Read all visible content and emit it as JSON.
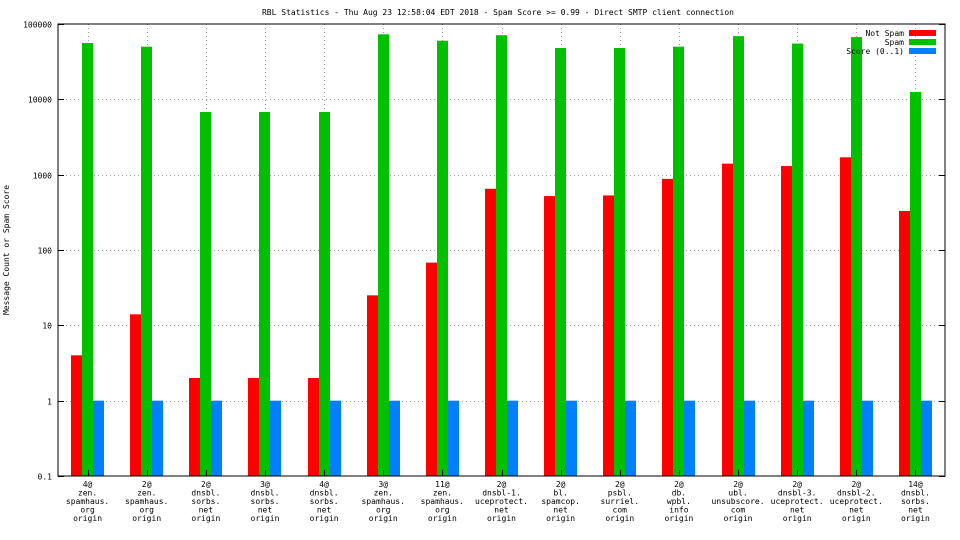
{
  "chart_data": {
    "type": "bar",
    "title": "RBL Statistics - Thu Aug 23 12:58:04 EDT 2018 - Spam Score >= 0.99 - Direct SMTP client connection",
    "xlabel": "",
    "ylabel": "Message Count or Spam Score",
    "yscale": "log",
    "ylim": [
      0.1,
      100000
    ],
    "yticks": [
      0.1,
      1,
      10,
      100,
      1000,
      10000,
      100000
    ],
    "ytick_labels": [
      "0.1",
      "1",
      "10",
      "100",
      "1000",
      "10000",
      "100000"
    ],
    "grid": true,
    "legend_position": "top-right",
    "categories": [
      [
        "4@",
        "zen.",
        "spamhaus.",
        "org",
        "origin"
      ],
      [
        "2@",
        "zen.",
        "spamhaus.",
        "org",
        "origin"
      ],
      [
        "2@",
        "dnsbl.",
        "sorbs.",
        "net",
        "origin"
      ],
      [
        "3@",
        "dnsbl.",
        "sorbs.",
        "net",
        "origin"
      ],
      [
        "4@",
        "dnsbl.",
        "sorbs.",
        "net",
        "origin"
      ],
      [
        "3@",
        "zen.",
        "spamhaus.",
        "org",
        "origin"
      ],
      [
        "11@",
        "zen.",
        "spamhaus.",
        "org",
        "origin"
      ],
      [
        "2@",
        "dnsbl-1.",
        "uceprotect.",
        "net",
        "origin"
      ],
      [
        "2@",
        "bl.",
        "spamcop.",
        "net",
        "origin"
      ],
      [
        "2@",
        "psbl.",
        "surriel.",
        "com",
        "origin"
      ],
      [
        "2@",
        "db.",
        "wpbl.",
        "info",
        "origin"
      ],
      [
        "2@",
        "ubl.",
        "unsubscore.",
        "com",
        "origin"
      ],
      [
        "2@",
        "dnsbl-3.",
        "uceprotect.",
        "net",
        "origin"
      ],
      [
        "2@",
        "dnsbl-2.",
        "uceprotect.",
        "net",
        "origin"
      ],
      [
        "14@",
        "dnsbl.",
        "sorbs.",
        "net",
        "origin"
      ]
    ],
    "series": [
      {
        "name": "Not Spam",
        "color": "#ff0000",
        "values": [
          4,
          14,
          2,
          2,
          2,
          25,
          68,
          650,
          520,
          530,
          880,
          1400,
          1300,
          1700,
          330
        ]
      },
      {
        "name": "Spam",
        "color": "#00c000",
        "values": [
          56000,
          50000,
          6800,
          6800,
          6800,
          73000,
          60000,
          71000,
          48000,
          48000,
          50000,
          69000,
          55000,
          67000,
          12500
        ]
      },
      {
        "name": "Score (0..1)",
        "color": "#0080ff",
        "values": [
          1,
          1,
          1,
          1,
          1,
          1,
          1,
          1,
          1,
          1,
          1,
          1,
          1,
          1,
          1
        ]
      }
    ]
  }
}
